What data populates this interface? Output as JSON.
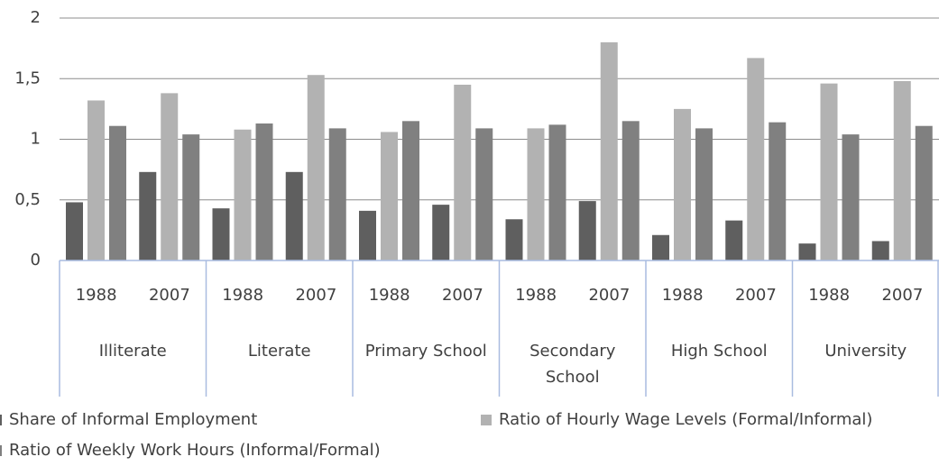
{
  "chart_data": {
    "type": "bar",
    "categories": [
      "1988",
      "2007",
      "1988",
      "2007",
      "1988",
      "2007",
      "1988",
      "2007",
      "1988",
      "2007",
      "1988",
      "2007"
    ],
    "category_groups": [
      "Illiterate",
      "Literate",
      "Primary School",
      "Secondary School",
      "High School",
      "University"
    ],
    "series": [
      {
        "name": "Share of Informal Employment",
        "color": "#5f5f5f",
        "values": [
          0.48,
          0.73,
          0.43,
          0.73,
          0.41,
          0.46,
          0.34,
          0.49,
          0.21,
          0.33,
          0.14,
          0.16
        ]
      },
      {
        "name": "Ratio of Hourly Wage Levels (Formal/Informal)",
        "color": "#b2b2b2",
        "values": [
          1.32,
          1.38,
          1.08,
          1.53,
          1.06,
          1.45,
          1.09,
          1.8,
          1.25,
          1.67,
          1.46,
          1.48
        ]
      },
      {
        "name": "Ratio of Weekly Work Hours (Informal/Formal)",
        "color": "#808080",
        "values": [
          1.11,
          1.04,
          1.13,
          1.09,
          1.15,
          1.09,
          1.12,
          1.15,
          1.09,
          1.14,
          1.04,
          1.11
        ]
      }
    ],
    "ylim": [
      0,
      2
    ],
    "yticks": [
      0,
      {
        "value": 0.5,
        "label": "0,5"
      },
      1,
      {
        "value": 1.5,
        "label": "1,5"
      },
      2
    ],
    "grid": true
  }
}
